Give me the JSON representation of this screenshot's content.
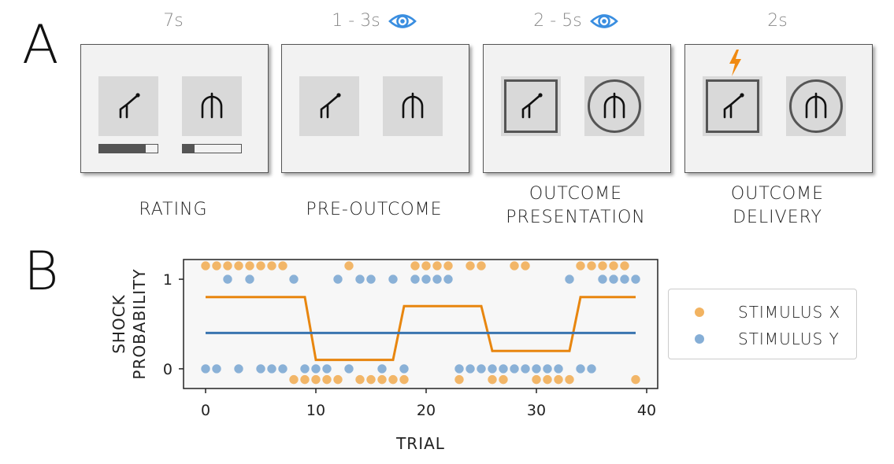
{
  "panel_a": {
    "letter": "A",
    "screens": [
      {
        "timing": "7s",
        "eye": false,
        "bolt": false,
        "phase": [
          "RATING"
        ],
        "bars": [
          0.8,
          0.2
        ],
        "frames": false
      },
      {
        "timing": "1 - 3s",
        "eye": true,
        "bolt": false,
        "phase": [
          "PRE-OUTCOME"
        ],
        "bars": null,
        "frames": false
      },
      {
        "timing": "2 - 5s",
        "eye": true,
        "bolt": false,
        "phase": [
          "OUTCOME",
          "PRESENTATION"
        ],
        "bars": null,
        "frames": true
      },
      {
        "timing": "2s",
        "eye": false,
        "bolt": true,
        "phase": [
          "OUTCOME",
          "DELIVERY"
        ],
        "bars": null,
        "frames": true
      }
    ],
    "icons": [
      "eye-icon",
      "lightning-bolt-icon",
      "stimulus-x-glyph",
      "stimulus-y-glyph"
    ]
  },
  "panel_b": {
    "letter": "B"
  },
  "chart_data": {
    "type": "line",
    "xlabel": "TRIAL",
    "ylabel_lines": [
      "SHOCK",
      "PROBABILITY"
    ],
    "xlim": [
      -2,
      41
    ],
    "ylim": [
      -0.22,
      1.22
    ],
    "xticks": [
      0,
      10,
      20,
      30,
      40
    ],
    "yticks": [
      0,
      1
    ],
    "colors": {
      "x": "#e8860f",
      "y": "#3a75b0",
      "x_dot": "#f2b361",
      "y_dot": "#85aed6"
    },
    "series": [
      {
        "name": "STIMULUS X",
        "line": [
          [
            0,
            0.8
          ],
          [
            9,
            0.8
          ],
          [
            10,
            0.1
          ],
          [
            17,
            0.1
          ],
          [
            18,
            0.7
          ],
          [
            25,
            0.7
          ],
          [
            26,
            0.2
          ],
          [
            33,
            0.2
          ],
          [
            34,
            0.8
          ],
          [
            39,
            0.8
          ]
        ],
        "shock_trials": [
          0,
          1,
          2,
          3,
          4,
          5,
          6,
          7,
          13,
          19,
          20,
          21,
          22,
          24,
          25,
          28,
          29,
          34,
          35,
          36,
          37,
          38
        ],
        "no_shock_trials": [
          8,
          9,
          10,
          11,
          12,
          14,
          15,
          16,
          17,
          18,
          23,
          26,
          27,
          30,
          31,
          32,
          33,
          39
        ]
      },
      {
        "name": "STIMULUS Y",
        "line": [
          [
            0,
            0.4
          ],
          [
            39,
            0.4
          ]
        ],
        "shock_trials": [
          2,
          4,
          8,
          12,
          14,
          15,
          17,
          19,
          20,
          21,
          22,
          33,
          36,
          37,
          38,
          39
        ],
        "no_shock_trials": [
          0,
          1,
          3,
          5,
          6,
          7,
          9,
          10,
          11,
          13,
          16,
          18,
          23,
          24,
          25,
          26,
          27,
          28,
          29,
          30,
          31,
          32,
          34,
          35
        ]
      }
    ]
  }
}
